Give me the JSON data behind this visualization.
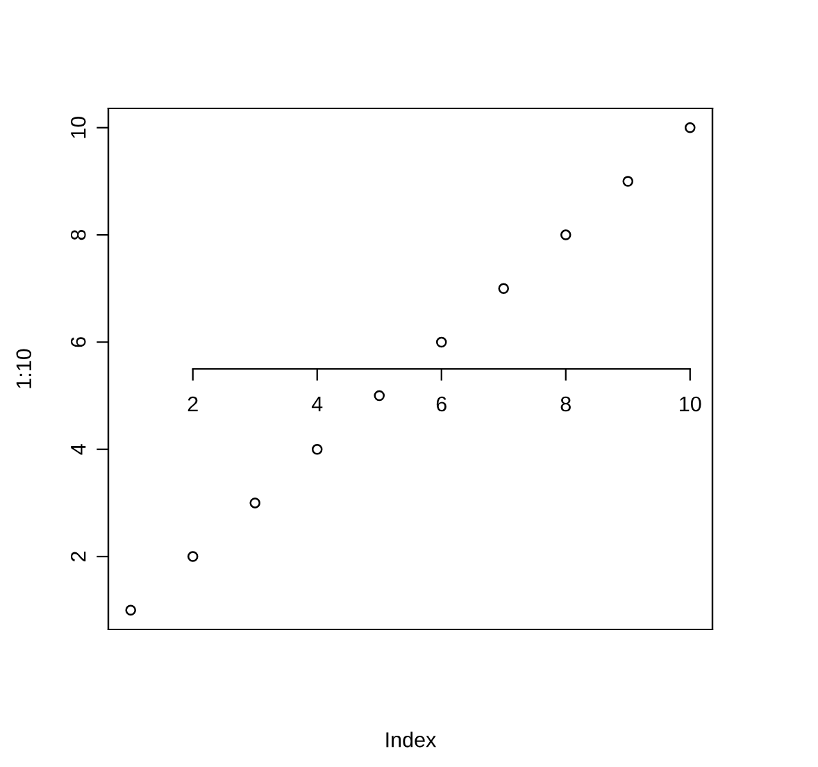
{
  "chart_data": {
    "type": "scatter",
    "xlabel": "Index",
    "ylabel": "1:10",
    "x": [
      1,
      2,
      3,
      4,
      5,
      6,
      7,
      8,
      9,
      10
    ],
    "values": [
      1,
      2,
      3,
      4,
      5,
      6,
      7,
      8,
      9,
      10
    ],
    "xlim": [
      0.64,
      10.36
    ],
    "ylim": [
      0.64,
      10.36
    ],
    "xticks": [
      2,
      4,
      6,
      8,
      10
    ],
    "yticks": [
      2,
      4,
      6,
      8,
      10
    ],
    "marker": "circle",
    "grid": false,
    "legend": false
  }
}
